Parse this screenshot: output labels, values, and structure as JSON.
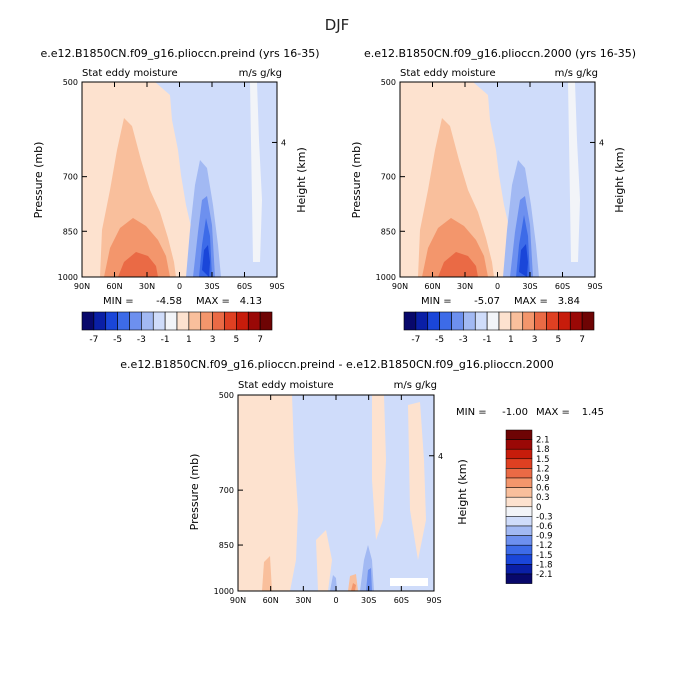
{
  "figure": {
    "title": "DJF"
  },
  "colors": {
    "levels": [
      "#08086b",
      "#0a1fa6",
      "#1a46d9",
      "#3d6be8",
      "#6d90ef",
      "#a2b9f3",
      "#cfdcfa",
      "#f2f4f8",
      "#fde2cf",
      "#f9bf9c",
      "#f3966c",
      "#ea6a45",
      "#df4022",
      "#c71c0b",
      "#9a0806",
      "#6e0404"
    ],
    "axis": "#000000"
  },
  "panels": [
    {
      "id": "preind",
      "title": "e.e12.B1850CN.f09_g16.plioccn.preind (yrs 16-35)",
      "subtitle": "Stat eddy moisture",
      "units": "m/s g/kg",
      "ylabel": "Pressure (mb)",
      "ylabel_right": "Height (km)",
      "stats": {
        "min_label": "MIN =",
        "min": "-4.58",
        "max_label": "MAX =",
        "max": "4.13"
      }
    },
    {
      "id": "2000",
      "title": "e.e12.B1850CN.f09_g16.plioccn.2000 (yrs 16-35)",
      "subtitle": "Stat eddy moisture",
      "units": "m/s g/kg",
      "ylabel": "Pressure (mb)",
      "ylabel_right": "Height (km)",
      "stats": {
        "min_label": "MIN =",
        "min": "-5.07",
        "max_label": "MAX =",
        "max": "3.84"
      }
    },
    {
      "id": "diff",
      "title": "e.e12.B1850CN.f09_g16.plioccn.preind - e.e12.B1850CN.f09_g16.plioccn.2000",
      "subtitle": "Stat eddy moisture",
      "units": "m/s g/kg",
      "ylabel": "Pressure (mb)",
      "ylabel_right": "Height (km)",
      "stats": {
        "min_label": "MIN =",
        "min": "-1.00",
        "max_label": "MAX =",
        "max": "1.45"
      }
    }
  ],
  "chart_data": [
    {
      "type": "heatmap",
      "name": "preind",
      "x_ticks": [
        "90N",
        "60N",
        "30N",
        "0",
        "30S",
        "60S",
        "90S"
      ],
      "x_values": [
        90,
        60,
        30,
        0,
        -30,
        -60,
        -90
      ],
      "y_ticks": [
        "500",
        "700",
        "850",
        "1000"
      ],
      "y_values": [
        500,
        700,
        850,
        1000
      ],
      "y_right_ticks": [
        "4"
      ],
      "y_scale": "log (pressure)",
      "colorbar_labels": [
        "-7",
        "-5",
        "-3",
        "-1",
        "1",
        "3",
        "5",
        "7"
      ],
      "colorbar_levels": [
        -7,
        -6,
        -5,
        -4,
        -3,
        -2,
        -1,
        0,
        1,
        2,
        3,
        4,
        5,
        6,
        7
      ],
      "min": -4.58,
      "max": 4.13
    },
    {
      "type": "heatmap",
      "name": "2000",
      "x_ticks": [
        "90N",
        "60N",
        "30N",
        "0",
        "30S",
        "60S",
        "90S"
      ],
      "x_values": [
        90,
        60,
        30,
        0,
        -30,
        -60,
        -90
      ],
      "y_ticks": [
        "500",
        "700",
        "850",
        "1000"
      ],
      "y_values": [
        500,
        700,
        850,
        1000
      ],
      "y_right_ticks": [
        "4"
      ],
      "y_scale": "log (pressure)",
      "colorbar_labels": [
        "-7",
        "-5",
        "-3",
        "-1",
        "1",
        "3",
        "5",
        "7"
      ],
      "colorbar_levels": [
        -7,
        -6,
        -5,
        -4,
        -3,
        -2,
        -1,
        0,
        1,
        2,
        3,
        4,
        5,
        6,
        7
      ],
      "min": -5.07,
      "max": 3.84
    },
    {
      "type": "heatmap",
      "name": "difference",
      "x_ticks": [
        "90N",
        "60N",
        "30N",
        "0",
        "30S",
        "60S",
        "90S"
      ],
      "x_values": [
        90,
        60,
        30,
        0,
        -30,
        -60,
        -90
      ],
      "y_ticks": [
        "500",
        "700",
        "850",
        "1000"
      ],
      "y_values": [
        500,
        700,
        850,
        1000
      ],
      "y_right_ticks": [
        "4"
      ],
      "y_scale": "log (pressure)",
      "colorbar_labels": [
        "2.1",
        "1.8",
        "1.5",
        "1.2",
        "0.9",
        "0.6",
        "0.3",
        "0",
        "-0.3",
        "-0.6",
        "-0.9",
        "-1.2",
        "-1.5",
        "-1.8",
        "-2.1"
      ],
      "colorbar_levels": [
        2.1,
        1.8,
        1.5,
        1.2,
        0.9,
        0.6,
        0.3,
        0,
        -0.3,
        -0.6,
        -0.9,
        -1.2,
        -1.5,
        -1.8,
        -2.1
      ],
      "min": -1.0,
      "max": 1.45
    }
  ]
}
